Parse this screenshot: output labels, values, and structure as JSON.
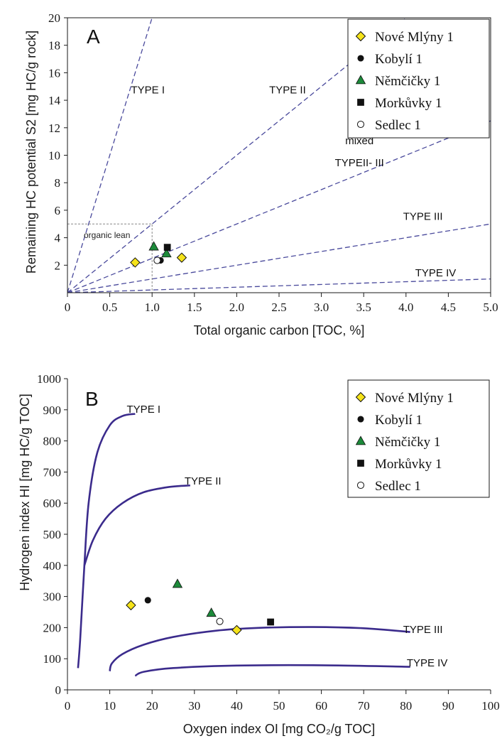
{
  "chart_data": [
    {
      "type": "scatter",
      "panel_label": "A",
      "xlabel": "Total organic carbon [TOC, %]",
      "ylabel": "Remaining HC potential S2 [mg HC/g rock]",
      "xlim": [
        0,
        5
      ],
      "ylim": [
        0,
        20
      ],
      "x_ticks": [
        "0",
        "0.5",
        "1.0",
        "1.5",
        "2.0",
        "2.5",
        "3.0",
        "3.5",
        "4.0",
        "4.5",
        "5.0"
      ],
      "y_ticks": [
        "2",
        "4",
        "6",
        "8",
        "10",
        "12",
        "14",
        "16",
        "18",
        "20"
      ],
      "grid": false,
      "legend_position": "top-right",
      "boundary_lines": [
        {
          "slope": 20
        },
        {
          "slope": 5
        },
        {
          "slope": 2.5
        },
        {
          "slope": 1
        },
        {
          "slope": 0.2
        }
      ],
      "organic_lean_box": {
        "x": [
          0,
          1
        ],
        "y": [
          0,
          5
        ],
        "label": "organic lean"
      },
      "regions": [
        {
          "label": "TYPE I",
          "x": 0.95,
          "y": 14.5
        },
        {
          "label": "TYPE II",
          "x": 2.6,
          "y": 14.5
        },
        {
          "label": "mixed",
          "x": 3.45,
          "y": 10.8
        },
        {
          "label": "TYPEII- III",
          "x": 3.45,
          "y": 9.2
        },
        {
          "label": "TYPE III",
          "x": 4.2,
          "y": 5.3
        },
        {
          "label": "TYPE IV",
          "x": 4.35,
          "y": 1.2
        }
      ],
      "series": [
        {
          "name": "Nové Mlýny 1",
          "marker": "diamond",
          "color": "#f5e31a",
          "points": [
            [
              0.8,
              2.2
            ],
            [
              1.35,
              2.55
            ]
          ]
        },
        {
          "name": "Kobylí 1",
          "marker": "circle-filled",
          "color": "#111111",
          "points": [
            [
              1.1,
              2.35
            ]
          ]
        },
        {
          "name": "Němčičky 1",
          "marker": "triangle",
          "color": "#1c8a3a",
          "points": [
            [
              1.02,
              3.35
            ],
            [
              1.17,
              2.85
            ]
          ]
        },
        {
          "name": "Morkůvky 1",
          "marker": "square",
          "color": "#111111",
          "points": [
            [
              1.18,
              3.3
            ]
          ]
        },
        {
          "name": "Sedlec 1",
          "marker": "circle-open",
          "color": "#ffffff",
          "points": [
            [
              1.06,
              2.35
            ]
          ]
        }
      ]
    },
    {
      "type": "scatter",
      "panel_label": "B",
      "xlabel": "Oxygen index OI [mg CO₂/g TOC]",
      "ylabel": "Hydrogen index HI [mg HC/g TOC]",
      "xlim": [
        0,
        100
      ],
      "ylim": [
        0,
        1000
      ],
      "x_ticks": [
        "0",
        "10",
        "20",
        "30",
        "40",
        "50",
        "60",
        "70",
        "80",
        "90",
        "100"
      ],
      "y_ticks": [
        "0",
        "100",
        "200",
        "300",
        "400",
        "500",
        "600",
        "700",
        "800",
        "900",
        "1000"
      ],
      "grid": false,
      "legend_position": "top-right",
      "curves": [
        {
          "label": "TYPE I",
          "label_at": [
            18,
            890
          ],
          "points": [
            [
              2.5,
              70
            ],
            [
              3,
              160
            ],
            [
              4,
              400
            ],
            [
              5,
              600
            ],
            [
              7,
              760
            ],
            [
              10,
              850
            ],
            [
              13,
              880
            ],
            [
              16,
              887
            ]
          ]
        },
        {
          "label": "TYPE II",
          "label_at": [
            32,
            660
          ],
          "points": [
            [
              4,
              400
            ],
            [
              6,
              480
            ],
            [
              9,
              550
            ],
            [
              13,
              600
            ],
            [
              18,
              635
            ],
            [
              24,
              652
            ],
            [
              29,
              657
            ]
          ]
        },
        {
          "label": "TYPE III",
          "label_at": [
            84,
            183
          ],
          "points": [
            [
              10,
              60
            ],
            [
              10.5,
              85
            ],
            [
              13,
              115
            ],
            [
              18,
              145
            ],
            [
              25,
              170
            ],
            [
              35,
              190
            ],
            [
              45,
              199
            ],
            [
              58,
              202
            ],
            [
              70,
              198
            ],
            [
              81,
              186
            ]
          ]
        },
        {
          "label": "TYPE IV",
          "label_at": [
            85,
            75
          ],
          "points": [
            [
              16,
              45
            ],
            [
              18,
              58
            ],
            [
              25,
              70
            ],
            [
              40,
              78
            ],
            [
              60,
              79
            ],
            [
              81,
              74
            ]
          ]
        }
      ],
      "series": [
        {
          "name": "Nové Mlýny 1",
          "marker": "diamond",
          "color": "#f5e31a",
          "points": [
            [
              15,
              272
            ],
            [
              40,
              192
            ]
          ]
        },
        {
          "name": "Kobylí 1",
          "marker": "circle-filled",
          "color": "#111111",
          "points": [
            [
              19,
              288
            ]
          ]
        },
        {
          "name": "Němčičky 1",
          "marker": "triangle",
          "color": "#1c8a3a",
          "points": [
            [
              26,
              340
            ],
            [
              34,
              247
            ]
          ]
        },
        {
          "name": "Morkůvky 1",
          "marker": "square",
          "color": "#111111",
          "points": [
            [
              48,
              218
            ]
          ]
        },
        {
          "name": "Sedlec 1",
          "marker": "circle-open",
          "color": "#ffffff",
          "points": [
            [
              36,
              220
            ]
          ]
        }
      ]
    }
  ]
}
